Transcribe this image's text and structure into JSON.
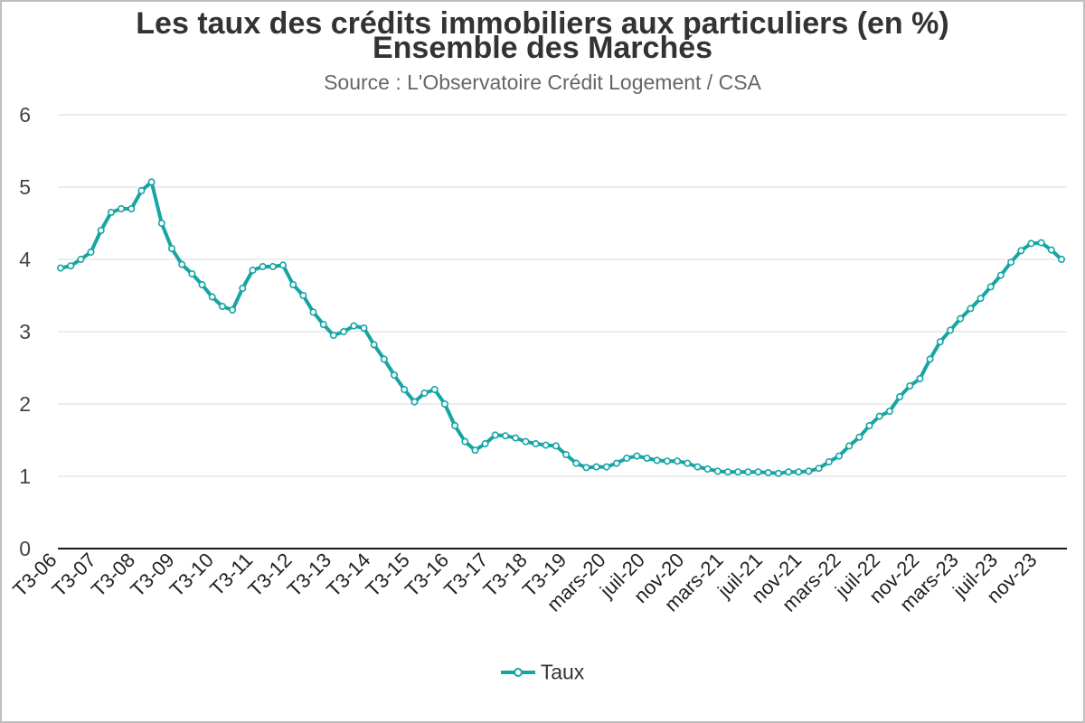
{
  "chart_data": {
    "type": "line",
    "title": "Les taux des crédits immobiliers aux particuliers (en %)",
    "subtitle_line2": "Ensemble des Marchés",
    "source": "Source : L'Observatoire Crédit Logement / CSA",
    "ylim": [
      0,
      6
    ],
    "yticks": [
      0,
      1,
      2,
      3,
      4,
      5,
      6
    ],
    "grid": true,
    "legend_position": "bottom",
    "x_tick_labels": [
      "T3-06",
      "T3-07",
      "T3-08",
      "T3-09",
      "T3-10",
      "T3-11",
      "T3-12",
      "T3-13",
      "T3-14",
      "T3-15",
      "T3-16",
      "T3-17",
      "T3-18",
      "T3-19",
      "mars-20",
      "juil-20",
      "nov-20",
      "mars-21",
      "juil-21",
      "nov-21",
      "mars-22",
      "juil-22",
      "nov-22",
      "mars-23",
      "juil-23",
      "nov-23"
    ],
    "series": [
      {
        "name": "Taux",
        "color": "#16a5a3",
        "values": [
          3.88,
          3.91,
          4.0,
          4.1,
          4.4,
          4.65,
          4.7,
          4.7,
          4.95,
          5.07,
          4.5,
          4.15,
          3.93,
          3.8,
          3.65,
          3.48,
          3.35,
          3.3,
          3.6,
          3.85,
          3.9,
          3.9,
          3.92,
          3.65,
          3.5,
          3.27,
          3.1,
          2.95,
          3.0,
          3.08,
          3.05,
          2.82,
          2.62,
          2.4,
          2.2,
          2.03,
          2.15,
          2.2,
          2.0,
          1.7,
          1.48,
          1.36,
          1.45,
          1.57,
          1.56,
          1.53,
          1.48,
          1.45,
          1.43,
          1.42,
          1.3,
          1.18,
          1.12,
          1.13,
          1.13,
          1.18,
          1.25,
          1.28,
          1.25,
          1.22,
          1.21,
          1.21,
          1.18,
          1.13,
          1.1,
          1.07,
          1.06,
          1.06,
          1.06,
          1.06,
          1.05,
          1.04,
          1.06,
          1.06,
          1.07,
          1.11,
          1.2,
          1.28,
          1.42,
          1.54,
          1.7,
          1.83,
          1.9,
          2.1,
          2.25,
          2.35,
          2.62,
          2.86,
          3.02,
          3.18,
          3.32,
          3.46,
          3.62,
          3.78,
          3.96,
          4.12,
          4.22,
          4.23,
          4.13,
          4.0
        ]
      }
    ]
  },
  "legend": {
    "label": "Taux"
  }
}
